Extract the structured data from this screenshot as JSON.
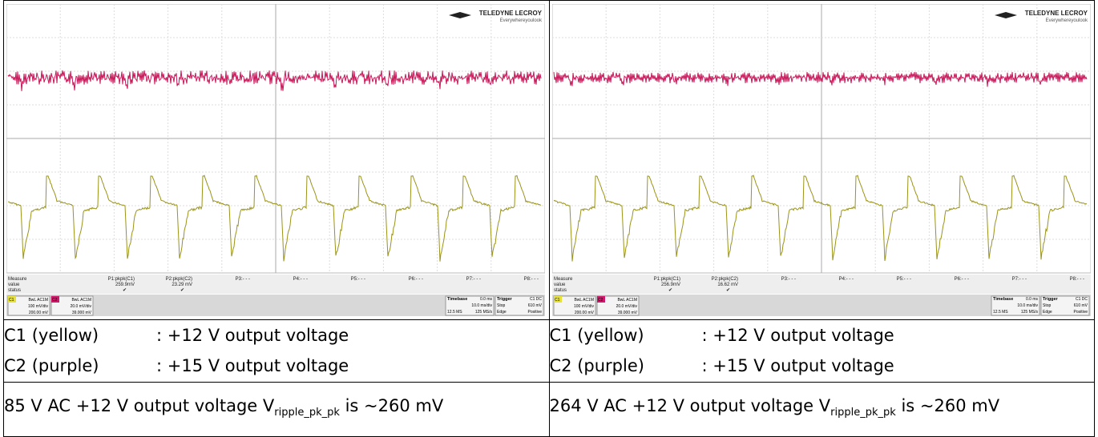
{
  "scopes": [
    {
      "logo": "TELEDYNE LECROY",
      "tagline": "Everywhereyoulook",
      "measure": {
        "labels": [
          "Measure",
          "value",
          "status"
        ],
        "params": [
          {
            "name": "P1:pkpk(C1)",
            "value": "259.9mV",
            "status": "✔"
          },
          {
            "name": "P2:pkpk(C2)",
            "value": "23.29 mV",
            "status": "✔"
          },
          {
            "name": "P3:- - -"
          },
          {
            "name": "P4:- - -"
          },
          {
            "name": "P5:- - -"
          },
          {
            "name": "P6:- - -"
          },
          {
            "name": "P7:- - -"
          },
          {
            "name": "P8:- - -"
          }
        ]
      },
      "channels": [
        {
          "id": "C1",
          "coupling": "BwL AC1M",
          "scale": "100 mV/div",
          "offset": "200.00 mV"
        },
        {
          "id": "C2",
          "coupling": "BwL AC1M",
          "scale": "20.0 mV/div",
          "offset": "39.000 mV"
        }
      ],
      "timebase": {
        "label": "Timebase",
        "delay": "0.0 ms",
        "scale": "10.0 ms/div",
        "samples": "12.5 MS",
        "rate": "125 MS/s"
      },
      "trigger": {
        "label": "Trigger",
        "source": "C1 DC",
        "mode": "Stop",
        "level": "610 mV",
        "type": "Edge",
        "slope": "Positive"
      }
    },
    {
      "logo": "TELEDYNE LECROY",
      "tagline": "Everywhereyoulook",
      "measure": {
        "labels": [
          "Measure",
          "value",
          "status"
        ],
        "params": [
          {
            "name": "P1:pkpk(C1)",
            "value": "256.9mV",
            "status": "✔"
          },
          {
            "name": "P2:pkpk(C2)",
            "value": "16.62 mV",
            "status": "✔"
          },
          {
            "name": "P3:- - -"
          },
          {
            "name": "P4:- - -"
          },
          {
            "name": "P5:- - -"
          },
          {
            "name": "P6:- - -"
          },
          {
            "name": "P7:- - -"
          },
          {
            "name": "P8:- - -"
          }
        ]
      },
      "channels": [
        {
          "id": "C1",
          "coupling": "BwL AC1M",
          "scale": "100 mV/div",
          "offset": "200.00 mV"
        },
        {
          "id": "C2",
          "coupling": "BwL AC1M",
          "scale": "20.0 mV/div",
          "offset": "39.000 mV"
        }
      ],
      "timebase": {
        "label": "Timebase",
        "delay": "0.0 ms",
        "scale": "10.0 ms/div",
        "samples": "12.5 MS",
        "rate": "125 MS/s"
      },
      "trigger": {
        "label": "Trigger",
        "source": "C1 DC",
        "mode": "Stop",
        "level": "610 mV",
        "type": "Edge",
        "slope": "Positive"
      }
    }
  ],
  "legend": [
    [
      {
        "channel": "C1 (yellow)",
        "description": ": +12 V output voltage"
      },
      {
        "channel": "C2 (purple)",
        "description": ": +15 V output voltage"
      }
    ],
    [
      {
        "channel": "C1 (yellow)",
        "description": ": +12 V output voltage"
      },
      {
        "channel": "C2 (purple)",
        "description": ": +15 V output voltage"
      }
    ]
  ],
  "captions": [
    {
      "text": "85 V AC +12 V output voltage V",
      "subscript": "ripple_pk_pk",
      "after": "is ~260 mV"
    },
    {
      "text": "264 V AC +12 V output voltage V",
      "subscript": "ripple_pk_pk",
      "after": "is ~260 mV"
    }
  ]
}
